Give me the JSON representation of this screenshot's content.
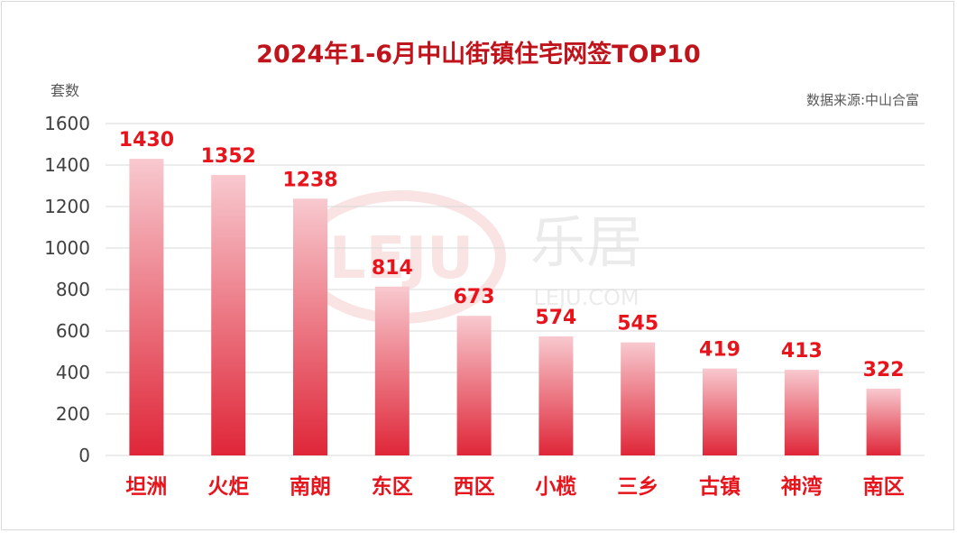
{
  "chart_data": {
    "type": "bar",
    "title": "2024年1-6月中山街镇住宅网签TOP10",
    "ylabel": "套数",
    "source": "数据来源:中山合富",
    "categories": [
      "坦洲",
      "火炬",
      "南朗",
      "东区",
      "西区",
      "小榄",
      "三乡",
      "古镇",
      "神湾",
      "南区"
    ],
    "values": [
      1430,
      1352,
      1238,
      814,
      673,
      574,
      545,
      419,
      413,
      322
    ],
    "ylim": [
      0,
      1600
    ],
    "yticks": [
      "0",
      "200",
      "400",
      "600",
      "800",
      "1000",
      "1200",
      "1400",
      "1600"
    ],
    "grid": true,
    "legend": "none"
  },
  "colors": {
    "title": "#c0141c",
    "label": "#e8141c",
    "bar_top": "#f8c9cf",
    "bar_bottom": "#df2638",
    "grid": "#d9d9d9",
    "axis_text": "#404040"
  },
  "watermark": {
    "logo_text": "LEJU",
    "brand_text": "乐居",
    "url_text": "LEJU.COM"
  }
}
